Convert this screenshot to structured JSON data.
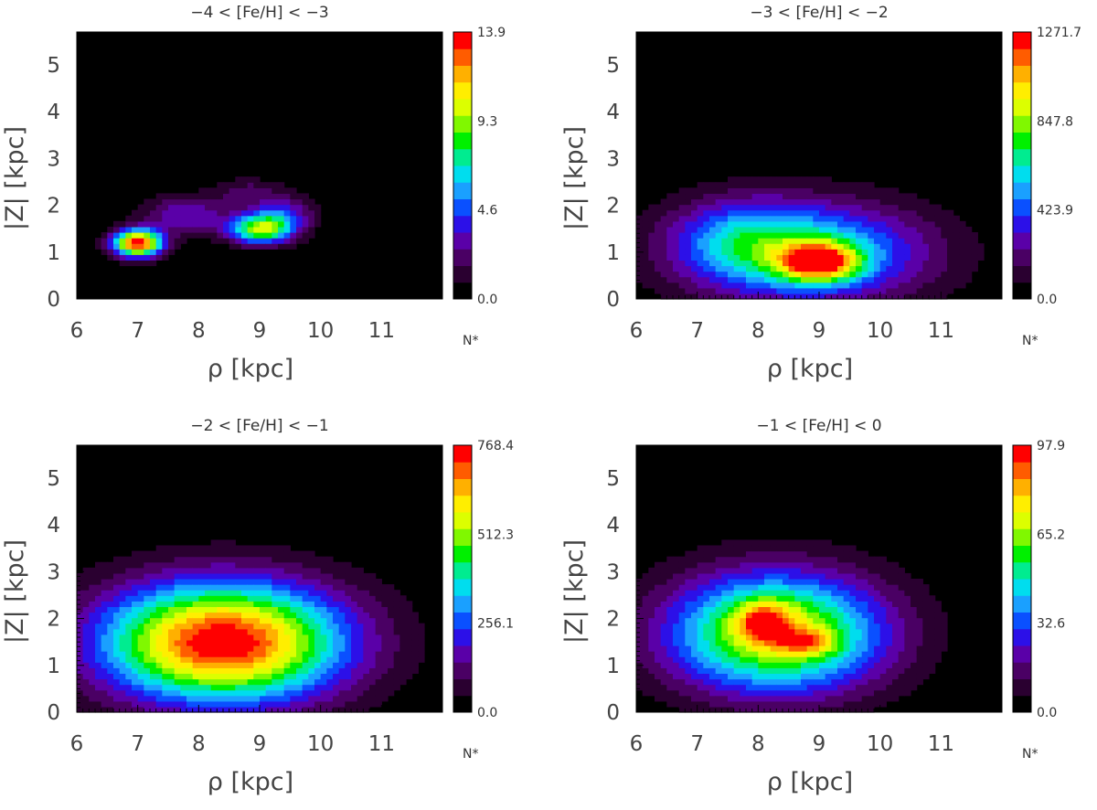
{
  "colorbar_unit": "N*",
  "colorscale": [
    "#000000",
    "#2a0030",
    "#4a0064",
    "#5a00a8",
    "#2c10e8",
    "#0a50ff",
    "#1aa0ff",
    "#00ddee",
    "#00ec90",
    "#00f000",
    "#80f800",
    "#dcff00",
    "#ffee00",
    "#ffb000",
    "#ff5c00",
    "#ff0000"
  ],
  "chart_data": [
    {
      "type": "heatmap",
      "title": "−4 < [Fe/H] < −3",
      "xlabel": "ρ [kpc]",
      "ylabel": "|Z| [kpc]",
      "xlim": [
        6,
        12
      ],
      "ylim": [
        0,
        5.7
      ],
      "xticks": [
        "6",
        "7",
        "8",
        "9",
        "10",
        "11"
      ],
      "yticks": [
        "0",
        "1",
        "2",
        "3",
        "4",
        "5"
      ],
      "colorbar_range": [
        0,
        13.9
      ],
      "colorbar_ticks": [
        "0.0",
        "4.6",
        "9.3",
        "13.9"
      ],
      "blobs": [
        {
          "x": 7.0,
          "y": 1.2,
          "sx": 0.28,
          "sy": 0.2,
          "amp": 13.9
        },
        {
          "x": 9.0,
          "y": 1.5,
          "sx": 0.35,
          "sy": 0.22,
          "amp": 9.0
        },
        {
          "x": 7.8,
          "y": 1.8,
          "sx": 0.5,
          "sy": 0.3,
          "amp": 3.5
        },
        {
          "x": 9.4,
          "y": 1.8,
          "sx": 0.35,
          "sy": 0.3,
          "amp": 3.8
        },
        {
          "x": 8.8,
          "y": 2.3,
          "sx": 0.35,
          "sy": 0.2,
          "amp": 2.0
        }
      ]
    },
    {
      "type": "heatmap",
      "title": "−3 < [Fe/H] < −2",
      "xlabel": "ρ [kpc]",
      "ylabel": "|Z| [kpc]",
      "xlim": [
        6,
        12
      ],
      "ylim": [
        0,
        5.7
      ],
      "xticks": [
        "6",
        "7",
        "8",
        "9",
        "10",
        "11"
      ],
      "yticks": [
        "0",
        "1",
        "2",
        "3",
        "4",
        "5"
      ],
      "colorbar_range": [
        0,
        1271.7
      ],
      "colorbar_ticks": [
        "0.0",
        "423.9",
        "847.8",
        "1271.7"
      ],
      "blobs": [
        {
          "x": 9.0,
          "y": 0.8,
          "sx": 0.45,
          "sy": 0.28,
          "amp": 850
        },
        {
          "x": 8.8,
          "y": 1.0,
          "sx": 1.4,
          "sy": 0.75,
          "amp": 650
        },
        {
          "x": 7.7,
          "y": 1.3,
          "sx": 0.8,
          "sy": 0.6,
          "amp": 280
        }
      ]
    },
    {
      "type": "heatmap",
      "title": "−2 < [Fe/H] < −1",
      "xlabel": "ρ [kpc]",
      "ylabel": "|Z| [kpc]",
      "xlim": [
        6,
        12
      ],
      "ylim": [
        0,
        5.7
      ],
      "xticks": [
        "6",
        "7",
        "8",
        "9",
        "10",
        "11"
      ],
      "yticks": [
        "0",
        "1",
        "2",
        "3",
        "4",
        "5"
      ],
      "colorbar_range": [
        0,
        768.4
      ],
      "colorbar_ticks": [
        "0.0",
        "256.1",
        "512.3",
        "768.4"
      ],
      "blobs": [
        {
          "x": 8.4,
          "y": 1.5,
          "sx": 1.4,
          "sy": 0.9,
          "amp": 780
        }
      ]
    },
    {
      "type": "heatmap",
      "title": "−1 < [Fe/H] < 0",
      "xlabel": "ρ [kpc]",
      "ylabel": "|Z| [kpc]",
      "xlim": [
        6,
        12
      ],
      "ylim": [
        0,
        5.7
      ],
      "xticks": [
        "6",
        "7",
        "8",
        "9",
        "10",
        "11"
      ],
      "yticks": [
        "0",
        "1",
        "2",
        "3",
        "4",
        "5"
      ],
      "colorbar_range": [
        0,
        97.9
      ],
      "colorbar_ticks": [
        "0.0",
        "32.6",
        "65.2",
        "97.9"
      ],
      "blobs": [
        {
          "x": 8.3,
          "y": 1.7,
          "sx": 1.25,
          "sy": 0.9,
          "amp": 76
        },
        {
          "x": 8.1,
          "y": 1.95,
          "sx": 0.32,
          "sy": 0.3,
          "amp": 32
        },
        {
          "x": 8.8,
          "y": 1.5,
          "sx": 0.35,
          "sy": 0.2,
          "amp": 26
        }
      ]
    }
  ]
}
